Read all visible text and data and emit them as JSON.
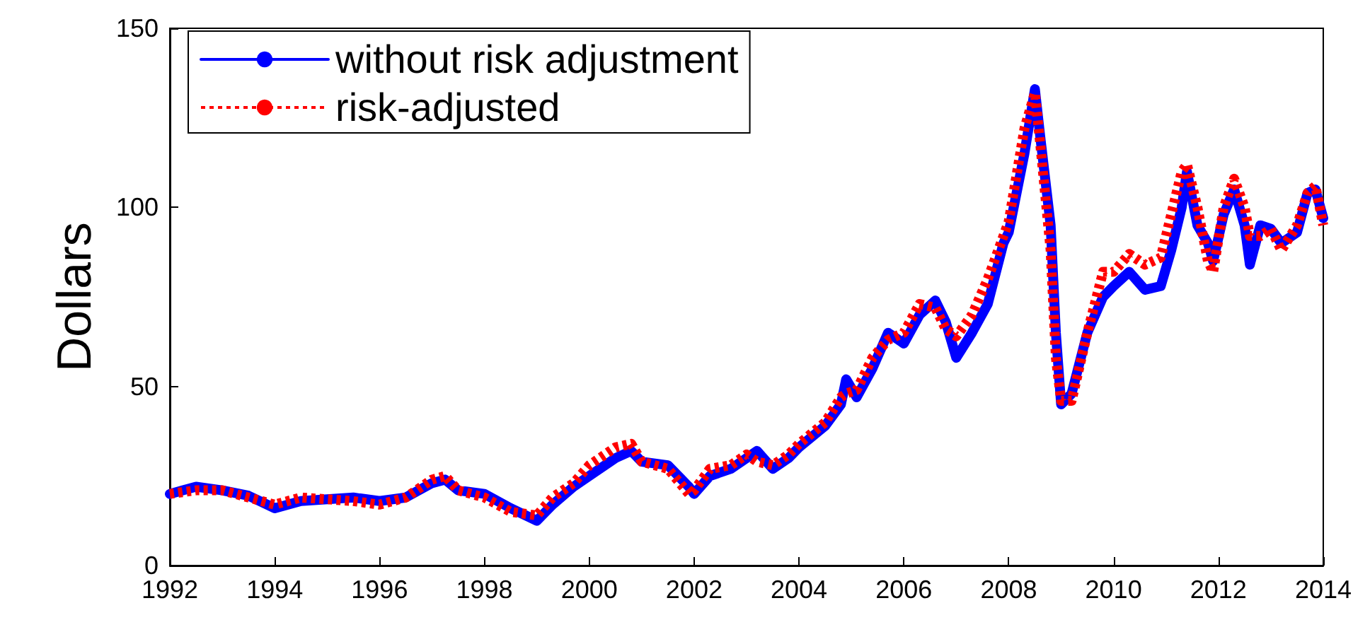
{
  "chart_data": {
    "type": "line",
    "ylabel": "Dollars",
    "x": [
      1992,
      1992.5,
      1993,
      1993.5,
      1994,
      1994.5,
      1995,
      1995.5,
      1996,
      1996.5,
      1997,
      1997.25,
      1997.5,
      1998,
      1998.5,
      1999,
      1999.3,
      1999.7,
      2000,
      2000.5,
      2000.8,
      2001,
      2001.5,
      2001.9,
      2002,
      2002.3,
      2002.7,
      2003,
      2003.2,
      2003.5,
      2003.8,
      2004,
      2004.5,
      2004.8,
      2004.9,
      2005.1,
      2005.4,
      2005.7,
      2006,
      2006.3,
      2006.6,
      2006.8,
      2007,
      2007.3,
      2007.6,
      2007.9,
      2008,
      2008.3,
      2008.5,
      2008.6,
      2008.8,
      2008.9,
      2009,
      2009.2,
      2009.5,
      2009.8,
      2010,
      2010.3,
      2010.6,
      2010.9,
      2011.1,
      2011.3,
      2011.4,
      2011.6,
      2011.8,
      2011.9,
      2012.1,
      2012.3,
      2012.5,
      2012.6,
      2012.8,
      2013,
      2013.2,
      2013.5,
      2013.7,
      2013.85,
      2014
    ],
    "series": [
      {
        "name": "without risk adjustment",
        "color": "#0000ff",
        "line_style": "solid",
        "values": [
          20,
          22,
          21,
          19.5,
          16,
          18,
          18.5,
          19,
          18,
          19,
          23,
          24,
          21,
          20,
          16,
          12.5,
          17,
          22,
          25,
          30,
          32,
          29,
          28,
          22,
          20,
          25,
          27,
          30,
          32,
          27,
          30,
          33,
          39,
          45,
          52,
          47,
          55,
          65,
          62,
          70,
          74,
          68,
          58,
          65,
          73,
          90,
          93,
          115,
          133,
          120,
          95,
          65,
          45,
          48,
          65,
          75,
          78,
          82,
          77,
          78,
          88,
          100,
          110,
          95,
          90,
          85,
          98,
          105,
          95,
          84,
          95,
          94,
          90,
          93,
          104,
          105,
          97
        ]
      },
      {
        "name": "risk-adjusted",
        "color": "#ff0000",
        "line_style": "dotted",
        "values": [
          20,
          21,
          21,
          19,
          17,
          19,
          18.5,
          18,
          17,
          19,
          24,
          25,
          21,
          19,
          15,
          14,
          19,
          23,
          28,
          33,
          34,
          29,
          27,
          20,
          21,
          27,
          28,
          31,
          29,
          28,
          31,
          34,
          40,
          47,
          48,
          49,
          58,
          63,
          65,
          73,
          72,
          66,
          64,
          70,
          80,
          92,
          96,
          122,
          132,
          118,
          88,
          58,
          46,
          46,
          65,
          82,
          82,
          87,
          84,
          86,
          98,
          110,
          112,
          100,
          85,
          82,
          100,
          108,
          100,
          92,
          92,
          94,
          88,
          95,
          104,
          106,
          95
        ]
      }
    ],
    "xlim": [
      1992,
      2014
    ],
    "xticks": [
      1992,
      1994,
      1996,
      1998,
      2000,
      2002,
      2004,
      2006,
      2008,
      2010,
      2012,
      2014
    ],
    "ylim": [
      0,
      150
    ],
    "yticks": [
      0,
      50,
      100,
      150
    ],
    "grid": false,
    "legend": "top left",
    "marker": "none"
  }
}
